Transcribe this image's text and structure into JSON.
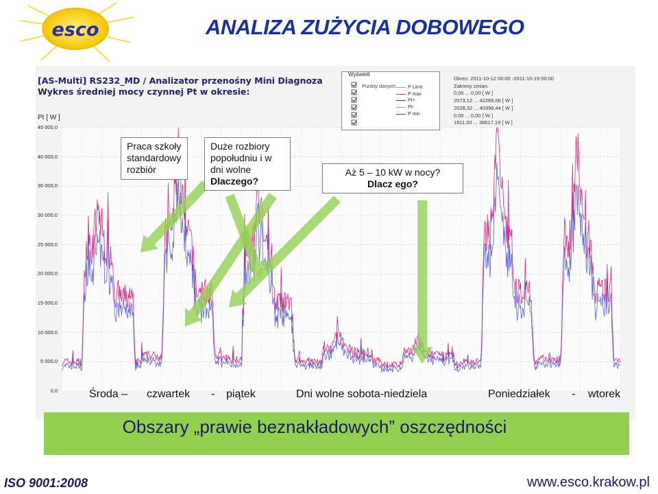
{
  "page": {
    "title": "ANALIZA ZUŻYCIA DOBOWEGO",
    "logo_text": "esco",
    "footer_left": "ISO 9001:2008",
    "footer_right": "www.esco.krakow.pl"
  },
  "chart_data": {
    "type": "line",
    "title_lines": [
      "[AS-Multi] RS232_MD / Analizator przenośny Mini Diagnoza",
      "Wykres średniej mocy czynnej Pt w okresie:"
    ],
    "ylabel": "Pt  [ W ]",
    "ylim": [
      0,
      45000
    ],
    "yticks": [
      "0,0",
      "5 000,0",
      "10 000,0",
      "15 000,0",
      "20 000,0",
      "25 000,0",
      "30 000,0",
      "35 000,0",
      "40 000,0",
      "45 000,0"
    ],
    "colors": {
      "pmax": "#d6267a",
      "pmin": "#3a44d8",
      "arrow": "#92d050"
    },
    "legend": {
      "title": "Wyświetl",
      "subtitle": "Punkty danych",
      "items": [
        "P Limit",
        "P max",
        "Pt+",
        "Pt-",
        "P min"
      ]
    },
    "info": {
      "period": "Okres:  2011-10-12 00:00 -2011-10-19 00:00",
      "ranges_label": "Zakresy zmian:",
      "ranges": [
        "0,00  ...  0,00  [ W ]",
        "2073,12  ...  42289,06  [ W ]",
        "2028,32  ...  40398,44  [ W ]",
        "0,00  ...  0,00  [ W ]",
        "1911,50  ...  38617,19  [ W ]"
      ]
    },
    "days": [
      {
        "name": "Środa",
        "day_peak": 30000,
        "day_level": 24000,
        "evening_level": 16000,
        "night_level": 5000
      },
      {
        "name": "Czwartek",
        "day_peak": 40000,
        "day_level": 26000,
        "evening_level": 17000,
        "night_level": 6000
      },
      {
        "name": "Piątek",
        "day_peak": 33000,
        "day_level": 23000,
        "evening_level": 15000,
        "night_level": 5500
      },
      {
        "name": "Sobota",
        "day_peak": 10000,
        "day_level": 7000,
        "evening_level": 6500,
        "night_level": 5000
      },
      {
        "name": "Niedziela",
        "day_peak": 9000,
        "day_level": 6500,
        "evening_level": 6000,
        "night_level": 4500
      },
      {
        "name": "Poniedziałek",
        "day_peak": 42000,
        "day_level": 27000,
        "evening_level": 17000,
        "night_level": 5000
      },
      {
        "name": "Wtorek",
        "day_peak": 40000,
        "day_level": 26000,
        "evening_level": 17000,
        "night_level": 5500
      }
    ],
    "annotations": {
      "school": "Praca szkoły standardowy rozbiór",
      "big_draw_1": "Duże rozbiory popołudniu i w dni wolne",
      "big_draw_2": "Dlaczego?",
      "night_1": "Aż 5 – 10 kW w nocy?",
      "night_2": "Dlacz ego?"
    },
    "day_labels": [
      "Środa –",
      "czwartek",
      "-",
      "piątek",
      "Dni wolne sobota-niedziela",
      "Poniedziałek",
      "-",
      "wtorek"
    ],
    "conclusion": "Obszary „prawie beznakładowych” oszczędności"
  }
}
